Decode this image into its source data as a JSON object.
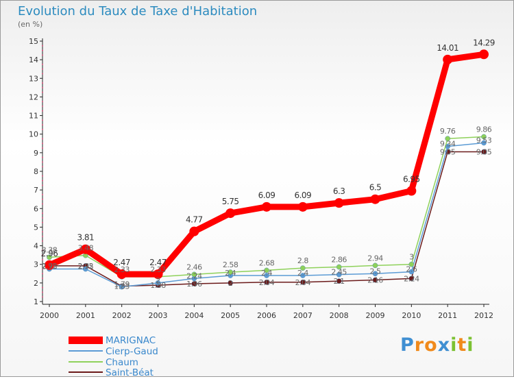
{
  "brand": {
    "letters": [
      "P",
      "r",
      "o",
      "x",
      "i",
      "t",
      "i"
    ],
    "colors": [
      "#3f8fd2",
      "#f08a1c",
      "#f08a1c",
      "#3f8fd2",
      "#7cc132",
      "#f08a1c",
      "#7cc132"
    ]
  },
  "chart_data": {
    "type": "line",
    "title": "Evolution du Taux de Taxe d'Habitation",
    "ylabel": "(en %)",
    "xlabel": "",
    "ylim": [
      1,
      15
    ],
    "yticks": [
      1,
      2,
      3,
      4,
      5,
      6,
      7,
      8,
      9,
      10,
      11,
      12,
      13,
      14,
      15
    ],
    "categories": [
      "2000",
      "2001",
      "2002",
      "2003",
      "2004",
      "2005",
      "2006",
      "2007",
      "2008",
      "2009",
      "2010",
      "2011",
      "2012"
    ],
    "series": [
      {
        "name": "MARIGNAC",
        "color": "#ff0000",
        "values": [
          2.96,
          3.81,
          2.47,
          2.47,
          4.77,
          5.75,
          6.09,
          6.09,
          6.3,
          6.5,
          6.95,
          14.01,
          14.29
        ],
        "labels": [
          "2.96",
          "3.81",
          "2.47",
          "2.47",
          "4.77",
          "5.75",
          "6.09",
          "6.09",
          "6.3",
          "6.5",
          "6.95",
          "14.01",
          "14.29"
        ]
      },
      {
        "name": "Cierp-Gaud",
        "color": "#5b9bd5",
        "values": [
          2.75,
          2.75,
          1.79,
          2.0,
          2.24,
          2.4,
          2.4,
          2.4,
          2.45,
          2.5,
          2.6,
          9.34,
          9.53
        ],
        "labels": [
          "2.75",
          "2.75",
          "1.79",
          "2",
          "2.24",
          "2.4",
          "2.4",
          "2.4",
          "2.45",
          "2.5",
          "2.6",
          "9.34",
          "9.53"
        ]
      },
      {
        "name": "Chaum",
        "color": "#8ed15a",
        "values": [
          3.38,
          3.48,
          2.33,
          2.33,
          2.46,
          2.58,
          2.68,
          2.8,
          2.86,
          2.94,
          3.0,
          9.76,
          9.86
        ],
        "labels": [
          "3.38",
          "3.48",
          "2.33",
          "2.33",
          "2.46",
          "2.58",
          "2.68",
          "2.8",
          "2.86",
          "2.94",
          "3",
          "9.76",
          "9.86"
        ]
      },
      {
        "name": "Saint-Béat",
        "color": "#6b1a1a",
        "values": [
          2.92,
          2.92,
          1.83,
          1.88,
          1.96,
          2.0,
          2.04,
          2.04,
          2.1,
          2.16,
          2.24,
          9.05,
          9.05
        ],
        "labels": [
          "2.92",
          "2.92",
          "1.83",
          "1.88",
          "1.96",
          "2",
          "2.04",
          "2.04",
          "2.1",
          "2.16",
          "2.24",
          "9.05",
          "9.05"
        ]
      }
    ],
    "legend": "bottom-left",
    "grid": false
  }
}
